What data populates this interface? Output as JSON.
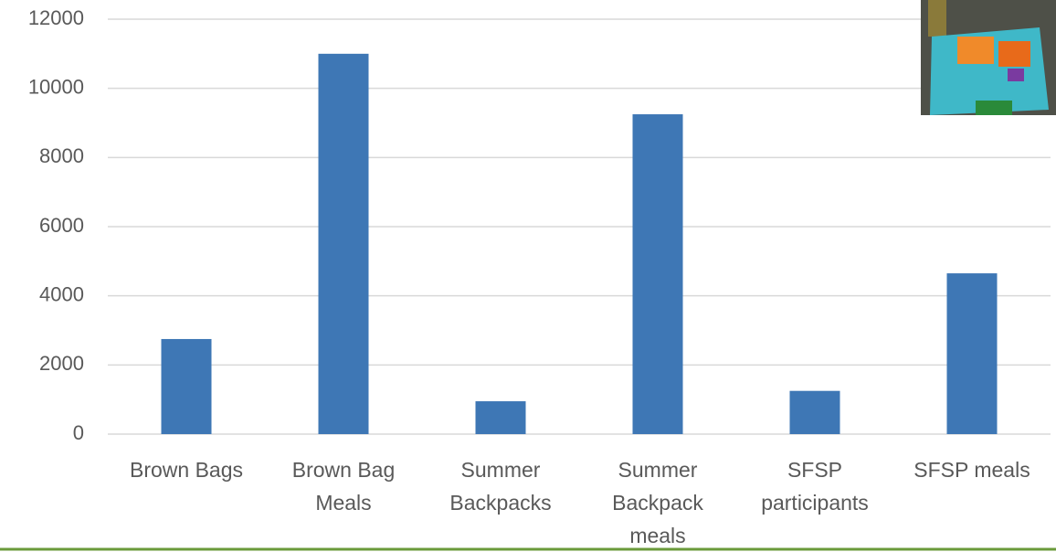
{
  "chart_data": {
    "type": "bar",
    "categories": [
      "Brown Bags",
      "Brown Bag Meals",
      "Summer Backpacks",
      "Summer Backpack meals",
      "SFSP participants",
      "SFSP meals"
    ],
    "values": [
      2750,
      11000,
      950,
      9250,
      1250,
      4650
    ],
    "color": "#3e77b5",
    "ylim": [
      0,
      12000
    ],
    "yticks": [
      0,
      2000,
      4000,
      6000,
      8000,
      10000,
      12000
    ],
    "grid": true
  }
}
